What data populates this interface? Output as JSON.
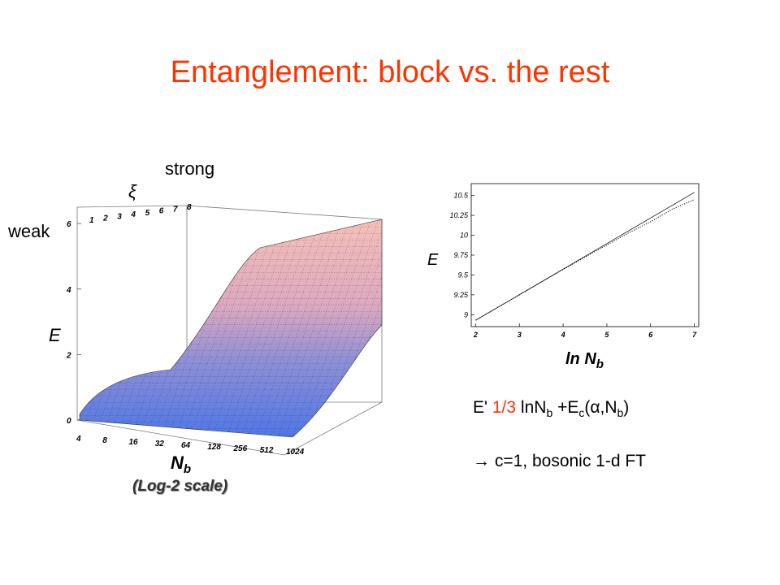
{
  "slide": {
    "title": "Entanglement: block vs. the rest",
    "label_strong": "strong",
    "label_weak": "weak",
    "log_scale_note": "(Log-2 scale)",
    "formula": {
      "lhs": "E",
      "approx": "'",
      "coef": "1/3",
      "term1": "lnN",
      "sub_b": "b",
      "plus": " +E",
      "sub_c": "c",
      "args_open": "(",
      "alpha": "α",
      "args_mid": ",N",
      "args_close": ")"
    },
    "conclusion_arrow": "→",
    "conclusion_text": "c=1, bosonic 1-d FT",
    "colors": {
      "title": "#ff3300",
      "surface_low": "#5577dd",
      "surface_high": "#f2b0ac"
    }
  },
  "chart_data": [
    {
      "type": "surface3d",
      "zlabel": "E",
      "xlabel": "N",
      "xlabel_sub": "b",
      "ylabel": "ξ",
      "x_ticks": [
        "4",
        "8",
        "16",
        "32",
        "64",
        "128",
        "256",
        "512",
        "1024"
      ],
      "y_ticks": [
        "1",
        "2",
        "3",
        "4",
        "5",
        "6",
        "7",
        "8"
      ],
      "z_ticks": [
        "0",
        "2",
        "4",
        "6"
      ],
      "zlim": [
        0,
        6.5
      ],
      "x_scale": "log2"
    },
    {
      "type": "line",
      "xlabel": "ln N",
      "xlabel_sub": "b",
      "ylabel": "E",
      "x_ticks": [
        "2",
        "3",
        "4",
        "5",
        "6",
        "7"
      ],
      "y_ticks": [
        "9",
        "9.25",
        "9.5",
        "9.75",
        "10",
        "10.25",
        "10.5"
      ],
      "xlim": [
        1.9,
        7.1
      ],
      "ylim": [
        8.85,
        10.65
      ],
      "series": [
        {
          "style": "solid",
          "x": [
            2.0,
            7.0
          ],
          "y": [
            8.93,
            10.54
          ]
        },
        {
          "style": "dotted",
          "x": [
            2.0,
            3.0,
            4.0,
            5.0,
            5.5,
            6.0,
            6.5,
            7.0
          ],
          "y": [
            8.93,
            9.25,
            9.57,
            9.88,
            10.03,
            10.17,
            10.33,
            10.45
          ]
        }
      ]
    }
  ]
}
